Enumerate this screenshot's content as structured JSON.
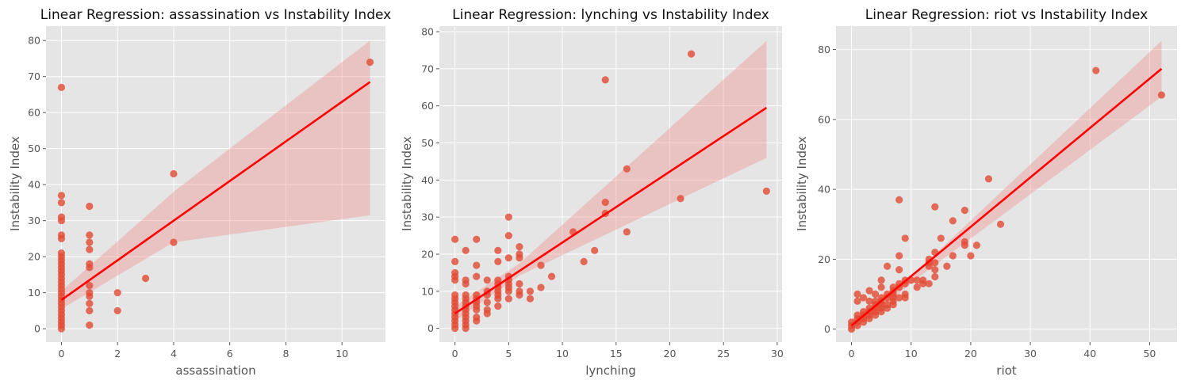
{
  "chart_data": [
    {
      "type": "scatter",
      "title": "Linear Regression: assassination vs Instability Index",
      "xlabel": "assassination",
      "ylabel": "Instability Index",
      "xlim": [
        -0.55,
        11.55
      ],
      "ylim": [
        -3.7,
        84.0
      ],
      "xticks": [
        0,
        2,
        4,
        6,
        8,
        10
      ],
      "yticks": [
        0,
        10,
        20,
        30,
        40,
        50,
        60,
        70,
        80
      ],
      "grid": true,
      "point_color": "#E24A33",
      "line_color": "#FF0000",
      "band_color": "#F08080",
      "points": [
        [
          0,
          0
        ],
        [
          0,
          1
        ],
        [
          0,
          2
        ],
        [
          0,
          3
        ],
        [
          0,
          4
        ],
        [
          0,
          5
        ],
        [
          0,
          6
        ],
        [
          0,
          7
        ],
        [
          0,
          8
        ],
        [
          0,
          9
        ],
        [
          0,
          10
        ],
        [
          0,
          11
        ],
        [
          0,
          12
        ],
        [
          0,
          13
        ],
        [
          0,
          14
        ],
        [
          0,
          15
        ],
        [
          0,
          16
        ],
        [
          0,
          17
        ],
        [
          0,
          18
        ],
        [
          0,
          19
        ],
        [
          0,
          20
        ],
        [
          0,
          21
        ],
        [
          0,
          25
        ],
        [
          0,
          26
        ],
        [
          0,
          30
        ],
        [
          0,
          31
        ],
        [
          0,
          35
        ],
        [
          0,
          37
        ],
        [
          0,
          67
        ],
        [
          1,
          1
        ],
        [
          1,
          5
        ],
        [
          1,
          7
        ],
        [
          1,
          9
        ],
        [
          1,
          10
        ],
        [
          1,
          12
        ],
        [
          1,
          17
        ],
        [
          1,
          18
        ],
        [
          1,
          22
        ],
        [
          1,
          24
        ],
        [
          1,
          26
        ],
        [
          1,
          34
        ],
        [
          2,
          5
        ],
        [
          2,
          10
        ],
        [
          3,
          14
        ],
        [
          4,
          24
        ],
        [
          4,
          43
        ],
        [
          11,
          74
        ]
      ],
      "regression": {
        "x": [
          0,
          11
        ],
        "y": [
          8.0,
          68.5
        ]
      },
      "ci_band": {
        "x": [
          0,
          4,
          11
        ],
        "lower": [
          5.5,
          24.0,
          31.5
        ],
        "upper": [
          10.5,
          38.0,
          80.0
        ]
      }
    },
    {
      "type": "scatter",
      "title": "Linear Regression: lynching vs Instability Index",
      "xlabel": "lynching",
      "ylabel": "Instability Index",
      "xlim": [
        -1.45,
        30.45
      ],
      "ylim": [
        -3.7,
        81.5
      ],
      "xticks": [
        0,
        5,
        10,
        15,
        20,
        25,
        30
      ],
      "yticks": [
        0,
        10,
        20,
        30,
        40,
        50,
        60,
        70,
        80
      ],
      "grid": true,
      "point_color": "#E24A33",
      "line_color": "#FF0000",
      "band_color": "#F08080",
      "points": [
        [
          0,
          0
        ],
        [
          0,
          1
        ],
        [
          0,
          2
        ],
        [
          0,
          3
        ],
        [
          0,
          4
        ],
        [
          0,
          5
        ],
        [
          0,
          6
        ],
        [
          0,
          7
        ],
        [
          0,
          8
        ],
        [
          0,
          9
        ],
        [
          0,
          13
        ],
        [
          0,
          14
        ],
        [
          0,
          15
        ],
        [
          0,
          18
        ],
        [
          0,
          24
        ],
        [
          1,
          0
        ],
        [
          1,
          1
        ],
        [
          1,
          2
        ],
        [
          1,
          3
        ],
        [
          1,
          4
        ],
        [
          1,
          5
        ],
        [
          1,
          6
        ],
        [
          1,
          7
        ],
        [
          1,
          8
        ],
        [
          1,
          9
        ],
        [
          1,
          12
        ],
        [
          1,
          13
        ],
        [
          1,
          21
        ],
        [
          2,
          2
        ],
        [
          2,
          3
        ],
        [
          2,
          5
        ],
        [
          2,
          6
        ],
        [
          2,
          7
        ],
        [
          2,
          8
        ],
        [
          2,
          9
        ],
        [
          2,
          14
        ],
        [
          2,
          17
        ],
        [
          2,
          24
        ],
        [
          3,
          4
        ],
        [
          3,
          5
        ],
        [
          3,
          7
        ],
        [
          3,
          9
        ],
        [
          3,
          10
        ],
        [
          3,
          13
        ],
        [
          4,
          6
        ],
        [
          4,
          8
        ],
        [
          4,
          9
        ],
        [
          4,
          10
        ],
        [
          4,
          11
        ],
        [
          4,
          12
        ],
        [
          4,
          13
        ],
        [
          4,
          18
        ],
        [
          4,
          21
        ],
        [
          5,
          8
        ],
        [
          5,
          10
        ],
        [
          5,
          11
        ],
        [
          5,
          12
        ],
        [
          5,
          13
        ],
        [
          5,
          14
        ],
        [
          5,
          19
        ],
        [
          5,
          25
        ],
        [
          5,
          30
        ],
        [
          6,
          9
        ],
        [
          6,
          10
        ],
        [
          6,
          12
        ],
        [
          6,
          19
        ],
        [
          6,
          20
        ],
        [
          6,
          22
        ],
        [
          7,
          8
        ],
        [
          7,
          10
        ],
        [
          8,
          11
        ],
        [
          8,
          17
        ],
        [
          9,
          14
        ],
        [
          11,
          26
        ],
        [
          12,
          18
        ],
        [
          13,
          21
        ],
        [
          14,
          31
        ],
        [
          14,
          34
        ],
        [
          14,
          67
        ],
        [
          16,
          26
        ],
        [
          16,
          43
        ],
        [
          21,
          35
        ],
        [
          22,
          74
        ],
        [
          29,
          37
        ]
      ],
      "regression": {
        "x": [
          0,
          29
        ],
        "y": [
          4.0,
          59.5
        ]
      },
      "ci_band": {
        "x": [
          0,
          6,
          29
        ],
        "lower": [
          2.0,
          14.2,
          46.0
        ],
        "upper": [
          6.0,
          17.5,
          77.5
        ]
      }
    },
    {
      "type": "scatter",
      "title": "Linear Regression: riot vs Instability Index",
      "xlabel": "riot",
      "ylabel": "Instability Index",
      "xlim": [
        -2.6,
        54.6
      ],
      "ylim": [
        -3.7,
        86.7
      ],
      "xticks": [
        0,
        10,
        20,
        30,
        40,
        50
      ],
      "yticks": [
        0,
        20,
        40,
        60,
        80
      ],
      "grid": true,
      "point_color": "#E24A33",
      "line_color": "#FF0000",
      "band_color": "#F08080",
      "points": [
        [
          0,
          0
        ],
        [
          0,
          1
        ],
        [
          0,
          2
        ],
        [
          1,
          1
        ],
        [
          1,
          2
        ],
        [
          1,
          3
        ],
        [
          1,
          4
        ],
        [
          1,
          8
        ],
        [
          1,
          10
        ],
        [
          2,
          2
        ],
        [
          2,
          3
        ],
        [
          2,
          4
        ],
        [
          2,
          5
        ],
        [
          2,
          9
        ],
        [
          3,
          3
        ],
        [
          3,
          4
        ],
        [
          3,
          5
        ],
        [
          3,
          6
        ],
        [
          3,
          8
        ],
        [
          3,
          11
        ],
        [
          4,
          4
        ],
        [
          4,
          5
        ],
        [
          4,
          6
        ],
        [
          4,
          7
        ],
        [
          4,
          8
        ],
        [
          4,
          10
        ],
        [
          5,
          5
        ],
        [
          5,
          6
        ],
        [
          5,
          7
        ],
        [
          5,
          8
        ],
        [
          5,
          9
        ],
        [
          5,
          12
        ],
        [
          5,
          14
        ],
        [
          6,
          6
        ],
        [
          6,
          7
        ],
        [
          6,
          9
        ],
        [
          6,
          10
        ],
        [
          6,
          18
        ],
        [
          7,
          7
        ],
        [
          7,
          8
        ],
        [
          7,
          9
        ],
        [
          7,
          10
        ],
        [
          7,
          11
        ],
        [
          7,
          12
        ],
        [
          8,
          9
        ],
        [
          8,
          12
        ],
        [
          8,
          13
        ],
        [
          8,
          17
        ],
        [
          8,
          21
        ],
        [
          8,
          37
        ],
        [
          9,
          9
        ],
        [
          9,
          10
        ],
        [
          9,
          13
        ],
        [
          9,
          14
        ],
        [
          9,
          26
        ],
        [
          10,
          14
        ],
        [
          11,
          12
        ],
        [
          11,
          14
        ],
        [
          12,
          13
        ],
        [
          12,
          14
        ],
        [
          13,
          13
        ],
        [
          13,
          18
        ],
        [
          13,
          19
        ],
        [
          13,
          20
        ],
        [
          14,
          15
        ],
        [
          14,
          17
        ],
        [
          14,
          19
        ],
        [
          14,
          22
        ],
        [
          14,
          35
        ],
        [
          15,
          26
        ],
        [
          16,
          18
        ],
        [
          17,
          21
        ],
        [
          17,
          31
        ],
        [
          19,
          24
        ],
        [
          19,
          25
        ],
        [
          19,
          34
        ],
        [
          20,
          21
        ],
        [
          21,
          24
        ],
        [
          23,
          43
        ],
        [
          25,
          30
        ],
        [
          41,
          74
        ],
        [
          52,
          67
        ]
      ],
      "regression": {
        "x": [
          0,
          52
        ],
        "y": [
          1.0,
          74.5
        ]
      },
      "ci_band": {
        "x": [
          0,
          12,
          52
        ],
        "lower": [
          -0.5,
          15.8,
          66.5
        ],
        "upper": [
          2.5,
          18.2,
          82.5
        ]
      }
    }
  ]
}
